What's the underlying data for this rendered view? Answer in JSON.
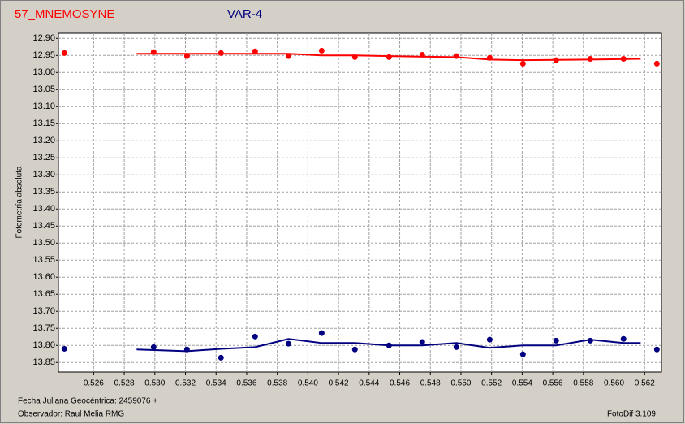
{
  "chart_data": {
    "type": "scatter",
    "y_label": "Fotometría absoluta",
    "footer_left_1": "Fecha Juliana Geocéntrica: 2459076 +",
    "footer_left_2": "Observador: Raul Melia RMG",
    "footer_right": "FotoDif 3.109",
    "xlim": [
      0.5237,
      0.5631
    ],
    "ylim": [
      12.885,
      13.878
    ],
    "y_inverted": true,
    "grid": true,
    "xticks": [
      0.526,
      0.528,
      {
        "value": 0.53,
        "label": "0.530"
      },
      0.532,
      0.534,
      0.536,
      0.538,
      {
        "value": 0.54,
        "label": "0.540"
      },
      0.542,
      0.544,
      0.546,
      0.548,
      {
        "value": 0.55,
        "label": "0.550"
      },
      0.552,
      0.554,
      0.556,
      0.558,
      {
        "value": 0.56,
        "label": "0.560"
      },
      0.562
    ],
    "yticks": [
      {
        "value": 12.9,
        "label": "12.90"
      },
      12.95,
      {
        "value": 13.0,
        "label": "13.00"
      },
      13.05,
      {
        "value": 13.1,
        "label": "13.10"
      },
      13.15,
      {
        "value": 13.2,
        "label": "13.20"
      },
      13.25,
      {
        "value": 13.3,
        "label": "13.30"
      },
      13.35,
      {
        "value": 13.4,
        "label": "13.40"
      },
      13.45,
      {
        "value": 13.5,
        "label": "13.50"
      },
      13.55,
      {
        "value": 13.6,
        "label": "13.60"
      },
      13.65,
      {
        "value": 13.7,
        "label": "13.70"
      },
      13.75,
      {
        "value": 13.8,
        "label": "13.80"
      },
      13.85
    ],
    "series": [
      {
        "name": "57_MNEMOSYNE",
        "color": "#ff0000",
        "x": [
          0.52409,
          0.52992,
          0.5321,
          0.53432,
          0.53655,
          0.53873,
          0.5409,
          0.54307,
          0.5453,
          0.54747,
          0.5497,
          0.55188,
          0.55405,
          0.55622,
          0.55845,
          0.56062,
          0.5628
        ],
        "values": [
          12.943,
          12.94,
          12.952,
          12.943,
          12.938,
          12.952,
          12.936,
          12.955,
          12.955,
          12.948,
          12.952,
          12.957,
          12.974,
          12.964,
          12.96,
          12.96,
          12.974
        ],
        "line_x": [
          0.52881,
          0.53873,
          0.5409,
          0.54307,
          0.5453,
          0.5497,
          0.55188,
          0.55405,
          0.55845,
          0.56174
        ],
        "line_values": [
          12.945,
          12.945,
          12.95,
          12.95,
          12.952,
          12.955,
          12.962,
          12.964,
          12.962,
          12.96
        ]
      },
      {
        "name": "VAR-4",
        "color": "#000080",
        "x": [
          0.52409,
          0.52992,
          0.5321,
          0.53432,
          0.53655,
          0.53873,
          0.5409,
          0.54307,
          0.5453,
          0.54747,
          0.5497,
          0.55188,
          0.55405,
          0.55622,
          0.55845,
          0.56062,
          0.5628
        ],
        "values": [
          13.81,
          13.805,
          13.812,
          13.836,
          13.774,
          13.795,
          13.764,
          13.812,
          13.8,
          13.79,
          13.805,
          13.783,
          13.826,
          13.786,
          13.786,
          13.781,
          13.812
        ],
        "line_x": [
          0.52881,
          0.5321,
          0.53432,
          0.53655,
          0.53873,
          0.5409,
          0.54307,
          0.5453,
          0.54747,
          0.5497,
          0.55188,
          0.55405,
          0.55622,
          0.55845,
          0.56062,
          0.56174
        ],
        "line_values": [
          13.812,
          13.817,
          13.81,
          13.805,
          13.781,
          13.793,
          13.793,
          13.8,
          13.8,
          13.793,
          13.807,
          13.8,
          13.8,
          13.783,
          13.793,
          13.793
        ]
      }
    ]
  }
}
